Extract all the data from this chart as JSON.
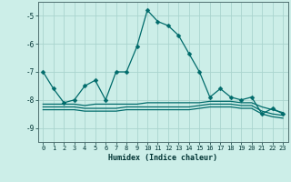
{
  "xlabel": "Humidex (Indice chaleur)",
  "background_color": "#cceee8",
  "grid_color": "#aad4ce",
  "line_color": "#006b6b",
  "x_values": [
    0,
    1,
    2,
    3,
    4,
    5,
    6,
    7,
    8,
    9,
    10,
    11,
    12,
    13,
    14,
    15,
    16,
    17,
    18,
    19,
    20,
    21,
    22,
    23
  ],
  "series1": [
    -7.0,
    -7.6,
    -8.1,
    -8.0,
    -7.5,
    -7.3,
    -8.0,
    -7.0,
    -7.0,
    -6.1,
    -4.8,
    -5.2,
    -5.35,
    -5.7,
    -6.35,
    -7.0,
    -7.9,
    -7.6,
    -7.9,
    -8.0,
    -7.9,
    -8.5,
    -8.3,
    -8.5
  ],
  "series2": [
    -8.15,
    -8.15,
    -8.15,
    -8.15,
    -8.2,
    -8.15,
    -8.15,
    -8.15,
    -8.15,
    -8.15,
    -8.1,
    -8.1,
    -8.1,
    -8.1,
    -8.1,
    -8.1,
    -8.05,
    -8.05,
    -8.05,
    -8.1,
    -8.1,
    -8.25,
    -8.35,
    -8.45
  ],
  "series3": [
    -8.25,
    -8.25,
    -8.25,
    -8.25,
    -8.3,
    -8.3,
    -8.3,
    -8.3,
    -8.25,
    -8.25,
    -8.25,
    -8.25,
    -8.25,
    -8.25,
    -8.25,
    -8.2,
    -8.15,
    -8.15,
    -8.15,
    -8.2,
    -8.2,
    -8.4,
    -8.5,
    -8.55
  ],
  "series4": [
    -8.35,
    -8.35,
    -8.35,
    -8.35,
    -8.4,
    -8.4,
    -8.4,
    -8.4,
    -8.35,
    -8.35,
    -8.35,
    -8.35,
    -8.35,
    -8.35,
    -8.35,
    -8.3,
    -8.25,
    -8.25,
    -8.25,
    -8.3,
    -8.3,
    -8.5,
    -8.6,
    -8.65
  ],
  "ylim": [
    -9.5,
    -4.5
  ],
  "yticks": [
    -9,
    -8,
    -7,
    -6,
    -5
  ],
  "xticks": [
    0,
    1,
    2,
    3,
    4,
    5,
    6,
    7,
    8,
    9,
    10,
    11,
    12,
    13,
    14,
    15,
    16,
    17,
    18,
    19,
    20,
    21,
    22,
    23
  ],
  "markersize": 2.5,
  "linewidth": 0.9
}
